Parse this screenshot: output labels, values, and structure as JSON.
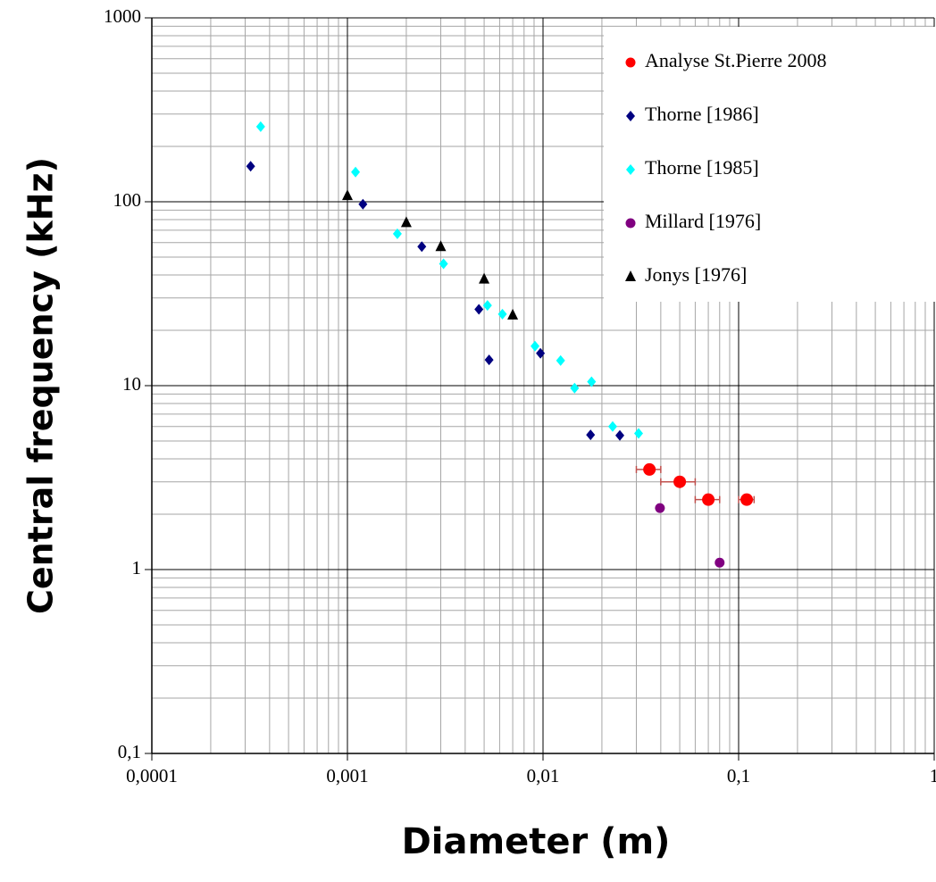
{
  "chart_data": {
    "type": "scatter",
    "x_label": "Diameter (m)",
    "y_label": "Central  frequency (kHz)",
    "xscale": "log",
    "yscale": "log",
    "xlim": [
      0.0001,
      1
    ],
    "ylim": [
      0.1,
      1000
    ],
    "xticks": [
      {
        "value": 0.0001,
        "label": "0,0001"
      },
      {
        "value": 0.001,
        "label": "0,001"
      },
      {
        "value": 0.01,
        "label": "0,01"
      },
      {
        "value": 0.1,
        "label": "0,1"
      },
      1
    ],
    "yticks": [
      {
        "value": 0.1,
        "label": "0,1"
      },
      1,
      10,
      100,
      1000
    ],
    "grid": true,
    "minor_grid": true,
    "legend": "upper right",
    "series": [
      {
        "name": "Analyse St.Pierre 2008",
        "color": "#ff0000",
        "marker": "circle",
        "error_color": "#c0504d",
        "x": [
          0.035,
          0.05,
          0.07,
          0.11
        ],
        "y": [
          3.5,
          3.0,
          2.4,
          2.4
        ],
        "xerr": [
          0.005,
          0.01,
          0.01,
          0.01
        ]
      },
      {
        "name": "Thorne [1986]",
        "color": "#000080",
        "marker": "diamond",
        "x": [
          0.00032,
          0.0012,
          0.0024,
          0.0047,
          0.0053,
          0.0097,
          0.0175,
          0.0247
        ],
        "y": [
          156,
          97,
          57,
          26,
          13.8,
          15,
          5.4,
          5.36
        ]
      },
      {
        "name": "Thorne [1985]",
        "color": "#00ffff",
        "marker": "diamond",
        "x": [
          0.00036,
          0.0011,
          0.0018,
          0.0031,
          0.0052,
          0.0062,
          0.0091,
          0.0123,
          0.0145,
          0.0177,
          0.0227,
          0.0308
        ],
        "y": [
          256,
          145,
          67,
          46,
          27.3,
          24.5,
          16.4,
          13.7,
          9.7,
          10.5,
          6.0,
          5.5
        ]
      },
      {
        "name": "Millard [1976]",
        "color": "#800080",
        "marker": "circle-small",
        "x": [
          0.0396,
          0.08
        ],
        "y": [
          2.16,
          1.09
        ]
      },
      {
        "name": "Jonys [1976]",
        "color": "#000000",
        "marker": "triangle",
        "x": [
          0.001,
          0.002,
          0.003,
          0.005,
          0.007
        ],
        "y": [
          108,
          77,
          57,
          38,
          24.2
        ]
      }
    ]
  }
}
